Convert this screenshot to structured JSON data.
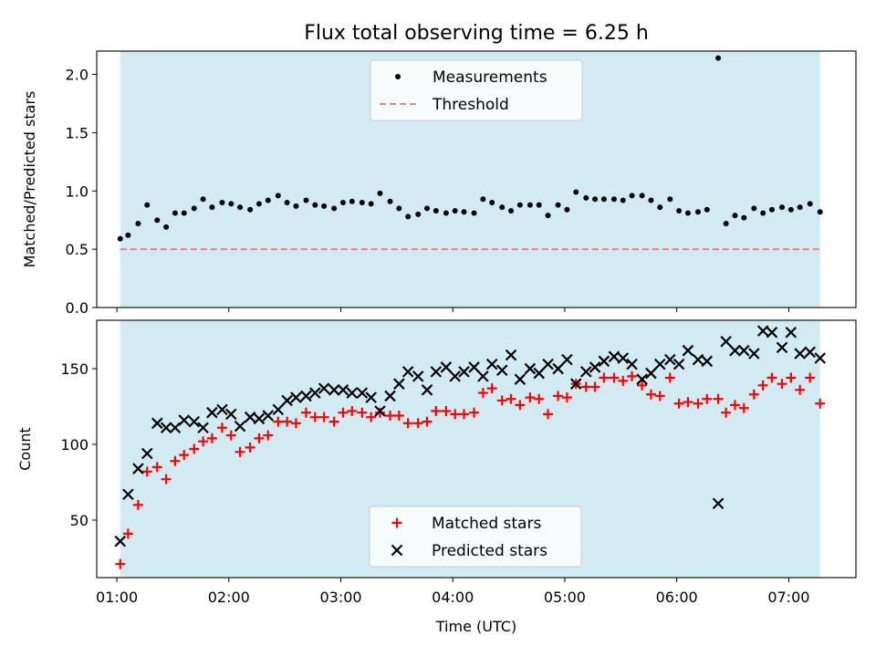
{
  "title": "Flux total observing time = 6.25 h",
  "colors": {
    "observing_band": "#add8e6",
    "measurement": "#000000",
    "threshold": "#f08080",
    "matched": "#ff0000",
    "predicted": "#000000"
  },
  "chart_data": [
    {
      "type": "scatter",
      "title": "Flux total observing time = 6.25 h",
      "xlabel": "",
      "ylabel": "Matched/Predicted stars",
      "x_unit": "hours (UTC)",
      "xlim": [
        0.82,
        7.6
      ],
      "ylim": [
        0.0,
        2.2
      ],
      "yticks": [
        0.0,
        0.5,
        1.0,
        1.5,
        2.0
      ],
      "ytick_labels": [
        "0.0",
        "0.5",
        "1.0",
        "1.5",
        "2.0"
      ],
      "xticks": [
        1,
        2,
        3,
        4,
        5,
        6,
        7
      ],
      "x_tick_labels_shown": false,
      "observing_window": [
        1.03,
        7.28
      ],
      "legend": {
        "position": "upper center",
        "entries": [
          "Measurements",
          "Threshold"
        ]
      },
      "series": [
        {
          "name": "Measurements",
          "marker": "dot",
          "x": [
            1.03,
            1.1,
            1.19,
            1.27,
            1.36,
            1.44,
            1.52,
            1.6,
            1.69,
            1.77,
            1.85,
            1.94,
            2.02,
            2.1,
            2.19,
            2.27,
            2.35,
            2.44,
            2.52,
            2.6,
            2.69,
            2.77,
            2.85,
            2.94,
            3.02,
            3.1,
            3.19,
            3.27,
            3.35,
            3.44,
            3.52,
            3.6,
            3.69,
            3.77,
            3.85,
            3.94,
            4.02,
            4.1,
            4.19,
            4.27,
            4.35,
            4.44,
            4.52,
            4.6,
            4.69,
            4.77,
            4.85,
            4.94,
            5.02,
            5.1,
            5.19,
            5.27,
            5.35,
            5.44,
            5.52,
            5.6,
            5.69,
            5.77,
            5.85,
            5.94,
            6.02,
            6.1,
            6.19,
            6.27,
            6.37,
            6.44,
            6.52,
            6.6,
            6.69,
            6.77,
            6.85,
            6.94,
            7.02,
            7.1,
            7.19,
            7.28
          ],
          "y": [
            0.59,
            0.62,
            0.72,
            0.88,
            0.75,
            0.69,
            0.81,
            0.81,
            0.85,
            0.93,
            0.86,
            0.9,
            0.89,
            0.86,
            0.84,
            0.89,
            0.92,
            0.96,
            0.9,
            0.87,
            0.92,
            0.88,
            0.87,
            0.85,
            0.9,
            0.91,
            0.9,
            0.89,
            0.98,
            0.91,
            0.85,
            0.78,
            0.8,
            0.85,
            0.83,
            0.81,
            0.83,
            0.82,
            0.81,
            0.93,
            0.9,
            0.86,
            0.83,
            0.88,
            0.88,
            0.88,
            0.79,
            0.88,
            0.84,
            0.99,
            0.94,
            0.93,
            0.93,
            0.93,
            0.92,
            0.96,
            0.96,
            0.92,
            0.86,
            0.93,
            0.83,
            0.81,
            0.82,
            0.84,
            2.14,
            0.72,
            0.79,
            0.77,
            0.85,
            0.81,
            0.84,
            0.86,
            0.84,
            0.86,
            0.89,
            0.82
          ]
        },
        {
          "name": "Threshold",
          "style": "dashed",
          "x": [
            1.03,
            7.28
          ],
          "y": [
            0.5,
            0.5
          ]
        }
      ]
    },
    {
      "type": "scatter",
      "title": "",
      "xlabel": "Time (UTC)",
      "ylabel": "Count",
      "x_unit": "hours (UTC)",
      "xlim": [
        0.82,
        7.6
      ],
      "ylim": [
        12,
        182
      ],
      "yticks": [
        50,
        100,
        150
      ],
      "ytick_labels": [
        "50",
        "100",
        "150"
      ],
      "xticks": [
        1,
        2,
        3,
        4,
        5,
        6,
        7
      ],
      "x_tick_labels": [
        "01:00",
        "02:00",
        "03:00",
        "04:00",
        "05:00",
        "06:00",
        "07:00"
      ],
      "observing_window": [
        1.03,
        7.28
      ],
      "legend": {
        "position": "lower center",
        "entries": [
          "Matched stars",
          "Predicted stars"
        ]
      },
      "series": [
        {
          "name": "Matched stars",
          "marker": "plus",
          "x": [
            1.03,
            1.1,
            1.19,
            1.27,
            1.36,
            1.44,
            1.52,
            1.6,
            1.69,
            1.77,
            1.85,
            1.94,
            2.02,
            2.1,
            2.19,
            2.27,
            2.35,
            2.44,
            2.52,
            2.6,
            2.69,
            2.77,
            2.85,
            2.94,
            3.02,
            3.1,
            3.19,
            3.27,
            3.35,
            3.44,
            3.52,
            3.6,
            3.69,
            3.77,
            3.85,
            3.94,
            4.02,
            4.1,
            4.19,
            4.27,
            4.35,
            4.44,
            4.52,
            4.6,
            4.69,
            4.77,
            4.85,
            4.94,
            5.02,
            5.1,
            5.19,
            5.27,
            5.35,
            5.44,
            5.52,
            5.6,
            5.69,
            5.77,
            5.85,
            5.94,
            6.02,
            6.1,
            6.19,
            6.27,
            6.37,
            6.44,
            6.52,
            6.6,
            6.69,
            6.77,
            6.85,
            6.94,
            7.02,
            7.1,
            7.19,
            7.28
          ],
          "y": [
            21,
            41,
            60,
            82,
            85,
            77,
            89,
            93,
            97,
            102,
            104,
            111,
            106,
            95,
            98,
            104,
            106,
            115,
            115,
            114,
            121,
            118,
            118,
            115,
            121,
            122,
            121,
            118,
            121,
            119,
            119,
            114,
            114,
            115,
            122,
            122,
            120,
            120,
            121,
            134,
            137,
            129,
            130,
            126,
            131,
            130,
            120,
            132,
            131,
            140,
            138,
            138,
            144,
            144,
            142,
            145,
            139,
            133,
            132,
            144,
            127,
            128,
            127,
            130,
            130,
            121,
            126,
            124,
            133,
            139,
            144,
            140,
            144,
            136,
            144,
            127
          ]
        },
        {
          "name": "Predicted stars",
          "marker": "x",
          "x": [
            1.03,
            1.1,
            1.19,
            1.27,
            1.36,
            1.44,
            1.52,
            1.6,
            1.69,
            1.77,
            1.85,
            1.94,
            2.02,
            2.1,
            2.19,
            2.27,
            2.35,
            2.44,
            2.52,
            2.6,
            2.69,
            2.77,
            2.85,
            2.94,
            3.02,
            3.1,
            3.19,
            3.27,
            3.35,
            3.44,
            3.52,
            3.6,
            3.69,
            3.77,
            3.85,
            3.94,
            4.02,
            4.1,
            4.19,
            4.27,
            4.35,
            4.44,
            4.52,
            4.6,
            4.69,
            4.77,
            4.85,
            4.94,
            5.02,
            5.1,
            5.19,
            5.27,
            5.35,
            5.44,
            5.52,
            5.6,
            5.69,
            5.77,
            5.85,
            5.94,
            6.02,
            6.1,
            6.19,
            6.27,
            6.37,
            6.44,
            6.52,
            6.6,
            6.69,
            6.77,
            6.85,
            6.94,
            7.02,
            7.1,
            7.19,
            7.28
          ],
          "y": [
            36,
            67,
            84,
            94,
            114,
            111,
            111,
            116,
            115,
            111,
            121,
            123,
            120,
            112,
            118,
            117,
            119,
            123,
            129,
            131,
            132,
            134,
            137,
            136,
            136,
            134,
            134,
            131,
            122,
            132,
            140,
            148,
            145,
            136,
            148,
            151,
            145,
            148,
            151,
            145,
            153,
            149,
            159,
            143,
            150,
            147,
            153,
            150,
            156,
            140,
            148,
            151,
            155,
            158,
            157,
            153,
            143,
            147,
            153,
            156,
            153,
            162,
            156,
            155,
            61,
            168,
            162,
            162,
            160,
            175,
            174,
            164,
            174,
            160,
            161,
            157
          ]
        }
      ]
    }
  ]
}
